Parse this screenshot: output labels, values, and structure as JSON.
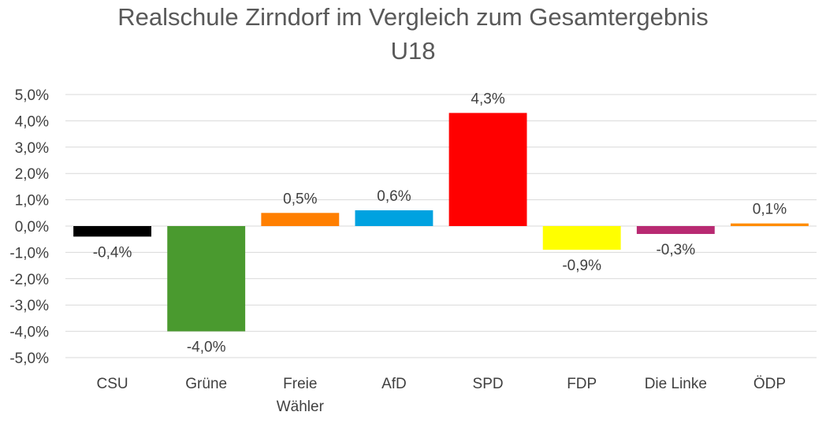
{
  "chart_data": {
    "type": "bar",
    "title": "Realschule Zirndorf im Vergleich zum Gesamtergebnis",
    "subtitle": "U18",
    "categories": [
      "CSU",
      "Grüne",
      "Freie Wähler",
      "AfD",
      "SPD",
      "FDP",
      "Die Linke",
      "ÖDP"
    ],
    "category_lines": [
      [
        "CSU"
      ],
      [
        "Grüne"
      ],
      [
        "Freie",
        "Wähler"
      ],
      [
        "AfD"
      ],
      [
        "SPD"
      ],
      [
        "FDP"
      ],
      [
        "Die Linke"
      ],
      [
        "ÖDP"
      ]
    ],
    "values": [
      -0.4,
      -4.0,
      0.5,
      0.6,
      4.3,
      -0.9,
      -0.3,
      0.1
    ],
    "value_labels": [
      "-0,4%",
      "-4,0%",
      "0,5%",
      "0,6%",
      "4,3%",
      "-0,9%",
      "-0,3%",
      "0,1%"
    ],
    "colors": [
      "#000000",
      "#4a9a2f",
      "#ff7f00",
      "#00a2e0",
      "#ff0000",
      "#ffff00",
      "#b82a72",
      "#ff8c00"
    ],
    "ylim": [
      -5.0,
      5.0
    ],
    "yticks": [
      5.0,
      4.0,
      3.0,
      2.0,
      1.0,
      0.0,
      -1.0,
      -2.0,
      -3.0,
      -4.0,
      -5.0
    ],
    "ytick_labels": [
      "5,0%",
      "4,0%",
      "3,0%",
      "2,0%",
      "1,0%",
      "0,0%",
      "-1,0%",
      "-2,0%",
      "-3,0%",
      "-4,0%",
      "-5,0%"
    ],
    "grid": true,
    "xlabel": "",
    "ylabel": ""
  }
}
